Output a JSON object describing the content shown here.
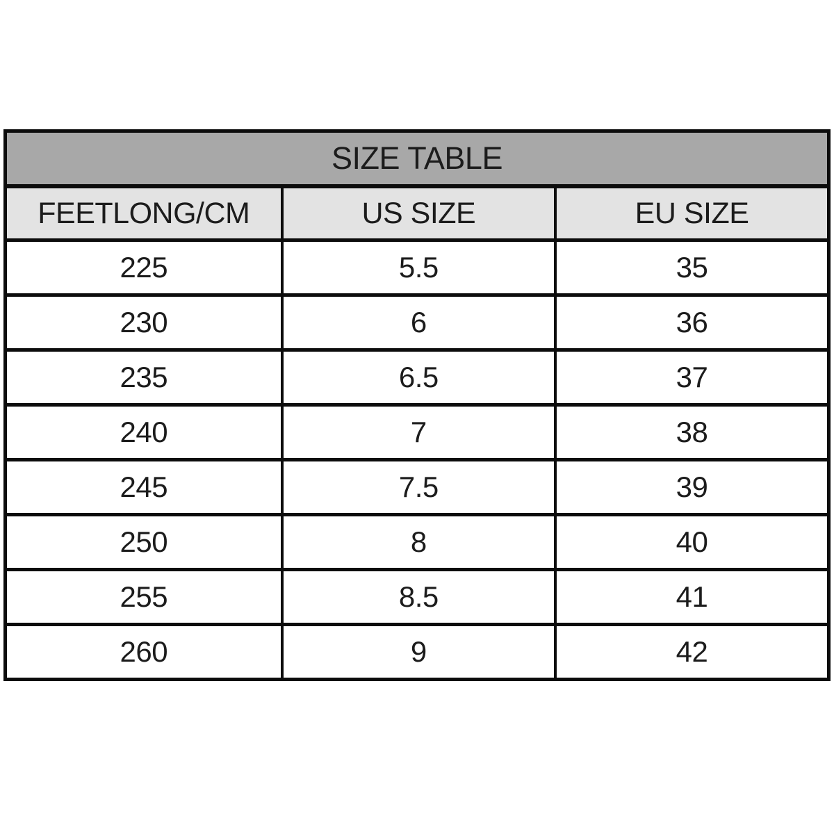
{
  "table": {
    "title": "SIZE TABLE",
    "columns": [
      "FEETLONG/CM",
      "US SIZE",
      "EU SIZE"
    ],
    "rows": [
      [
        "225",
        "5.5",
        "35"
      ],
      [
        "230",
        "6",
        "36"
      ],
      [
        "235",
        "6.5",
        "37"
      ],
      [
        "240",
        "7",
        "38"
      ],
      [
        "245",
        "7.5",
        "39"
      ],
      [
        "250",
        "8",
        "40"
      ],
      [
        "255",
        "8.5",
        "41"
      ],
      [
        "260",
        "9",
        "42"
      ]
    ]
  },
  "colors": {
    "title_bg": "#a8a8a8",
    "header_bg": "#e3e3e3",
    "row_bg": "#ffffff",
    "border": "#0c0c0c",
    "text": "#1c1c1c"
  },
  "chart_data": {
    "type": "table",
    "title": "SIZE TABLE",
    "columns": [
      "FEETLONG/CM",
      "US SIZE",
      "EU SIZE"
    ],
    "rows": [
      {
        "feetlong_cm": 225,
        "us_size": 5.5,
        "eu_size": 35
      },
      {
        "feetlong_cm": 230,
        "us_size": 6,
        "eu_size": 36
      },
      {
        "feetlong_cm": 235,
        "us_size": 6.5,
        "eu_size": 37
      },
      {
        "feetlong_cm": 240,
        "us_size": 7,
        "eu_size": 38
      },
      {
        "feetlong_cm": 245,
        "us_size": 7.5,
        "eu_size": 39
      },
      {
        "feetlong_cm": 250,
        "us_size": 8,
        "eu_size": 40
      },
      {
        "feetlong_cm": 255,
        "us_size": 8.5,
        "eu_size": 41
      },
      {
        "feetlong_cm": 260,
        "us_size": 9,
        "eu_size": 42
      }
    ],
    "layout_hints": {
      "title_band_color": "#a8a8a8",
      "header_band_color": "#e3e3e3",
      "grid": "on",
      "borders": "thick-black"
    }
  }
}
